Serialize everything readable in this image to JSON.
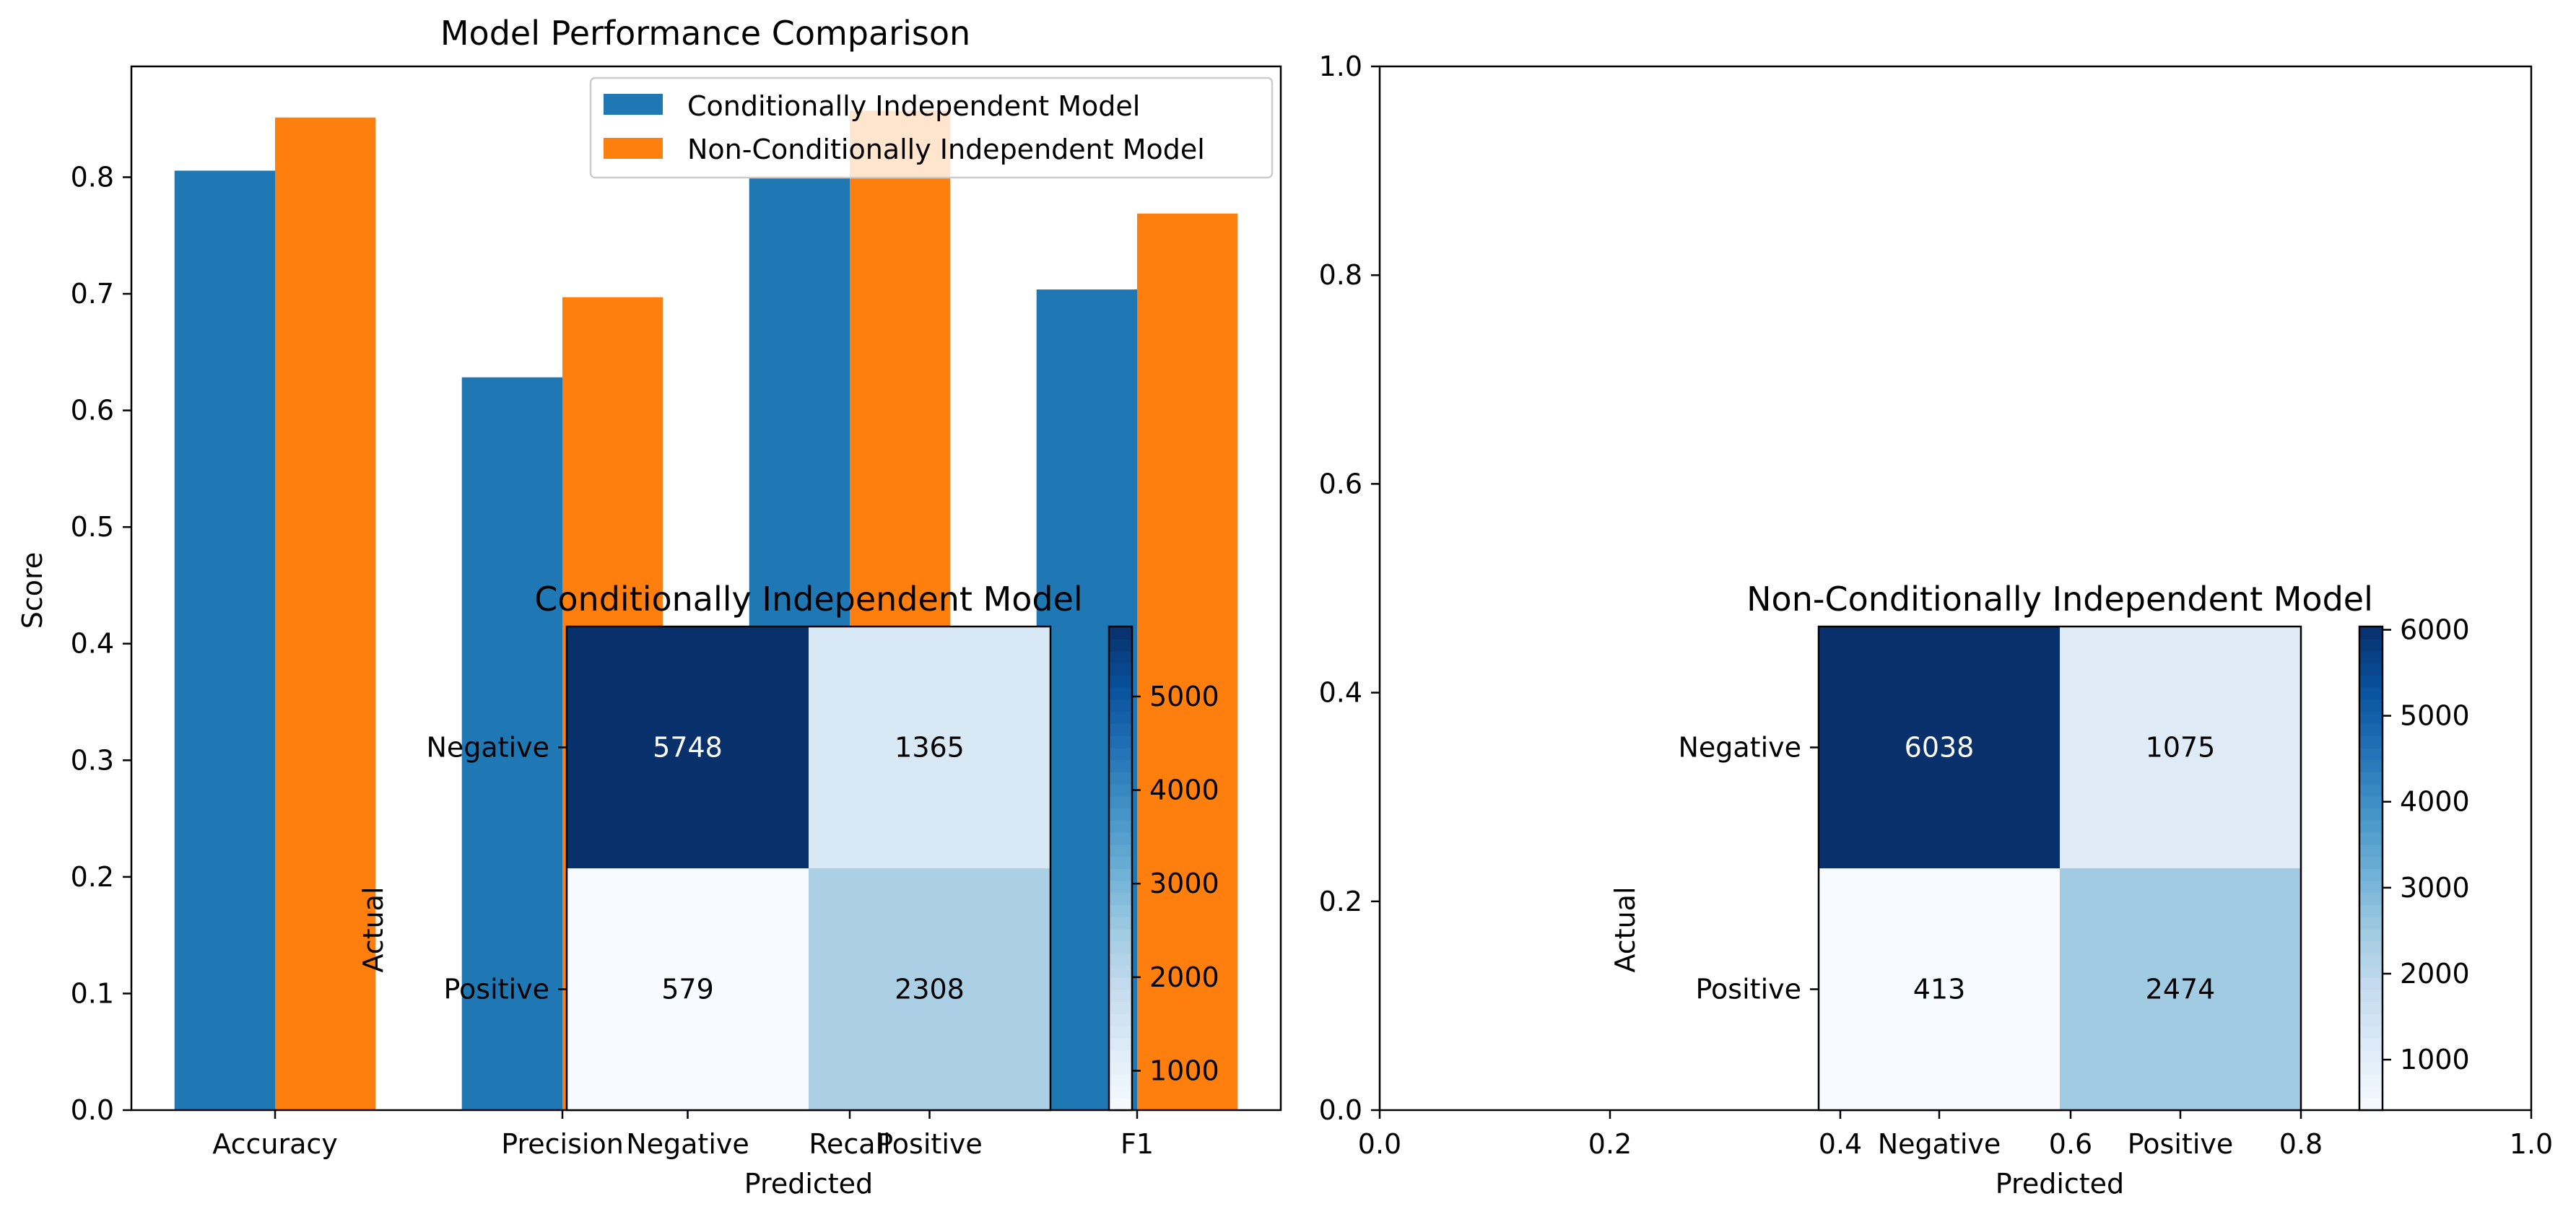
{
  "chart_data": [
    {
      "type": "bar",
      "title": "Model Performance Comparison",
      "xlabel": "",
      "ylabel": "Score",
      "ylim": [
        0,
        0.895
      ],
      "yticks": [
        0.0,
        0.1,
        0.2,
        0.3,
        0.4,
        0.5,
        0.6,
        0.7,
        0.8
      ],
      "categories": [
        "Accuracy",
        "Precision",
        "Recall",
        "F1"
      ],
      "series": [
        {
          "name": "Conditionally Independent Model",
          "color": "#1f77b4",
          "values": [
            0.8056,
            0.6284,
            0.7995,
            0.7037
          ]
        },
        {
          "name": "Non-Conditionally Independent Model",
          "color": "#ff7f0e",
          "values": [
            0.8512,
            0.6971,
            0.857,
            0.7688
          ]
        }
      ],
      "legend": "upper-right",
      "grid": false
    },
    {
      "type": "heatmap",
      "title": "Conditionally Independent Model",
      "xlabel": "Predicted",
      "ylabel": "Actual",
      "x_categories": [
        "Negative",
        "Positive"
      ],
      "y_categories": [
        "Negative",
        "Positive"
      ],
      "values": [
        [
          5748,
          1365
        ],
        [
          579,
          2308
        ]
      ],
      "colormap": "Blues",
      "colorbar_ticks": [
        1000,
        2000,
        3000,
        4000,
        5000
      ]
    },
    {
      "type": "heatmap",
      "title": "Non-Conditionally Independent Model",
      "xlabel": "Predicted",
      "ylabel": "Actual",
      "x_categories": [
        "Negative",
        "Positive"
      ],
      "y_categories": [
        "Negative",
        "Positive"
      ],
      "values": [
        [
          6038,
          1075
        ],
        [
          413,
          2474
        ]
      ],
      "colormap": "Blues",
      "colorbar_ticks": [
        1000,
        2000,
        3000,
        4000,
        5000,
        6000
      ]
    },
    {
      "type": "scatter",
      "title": "",
      "xlim": [
        0,
        1
      ],
      "ylim": [
        0,
        1
      ],
      "xticks": [
        0.0,
        0.2,
        0.4,
        0.6,
        0.8,
        1.0
      ],
      "yticks": [
        0.0,
        0.2,
        0.4,
        0.6,
        0.8,
        1.0
      ],
      "series": []
    }
  ]
}
